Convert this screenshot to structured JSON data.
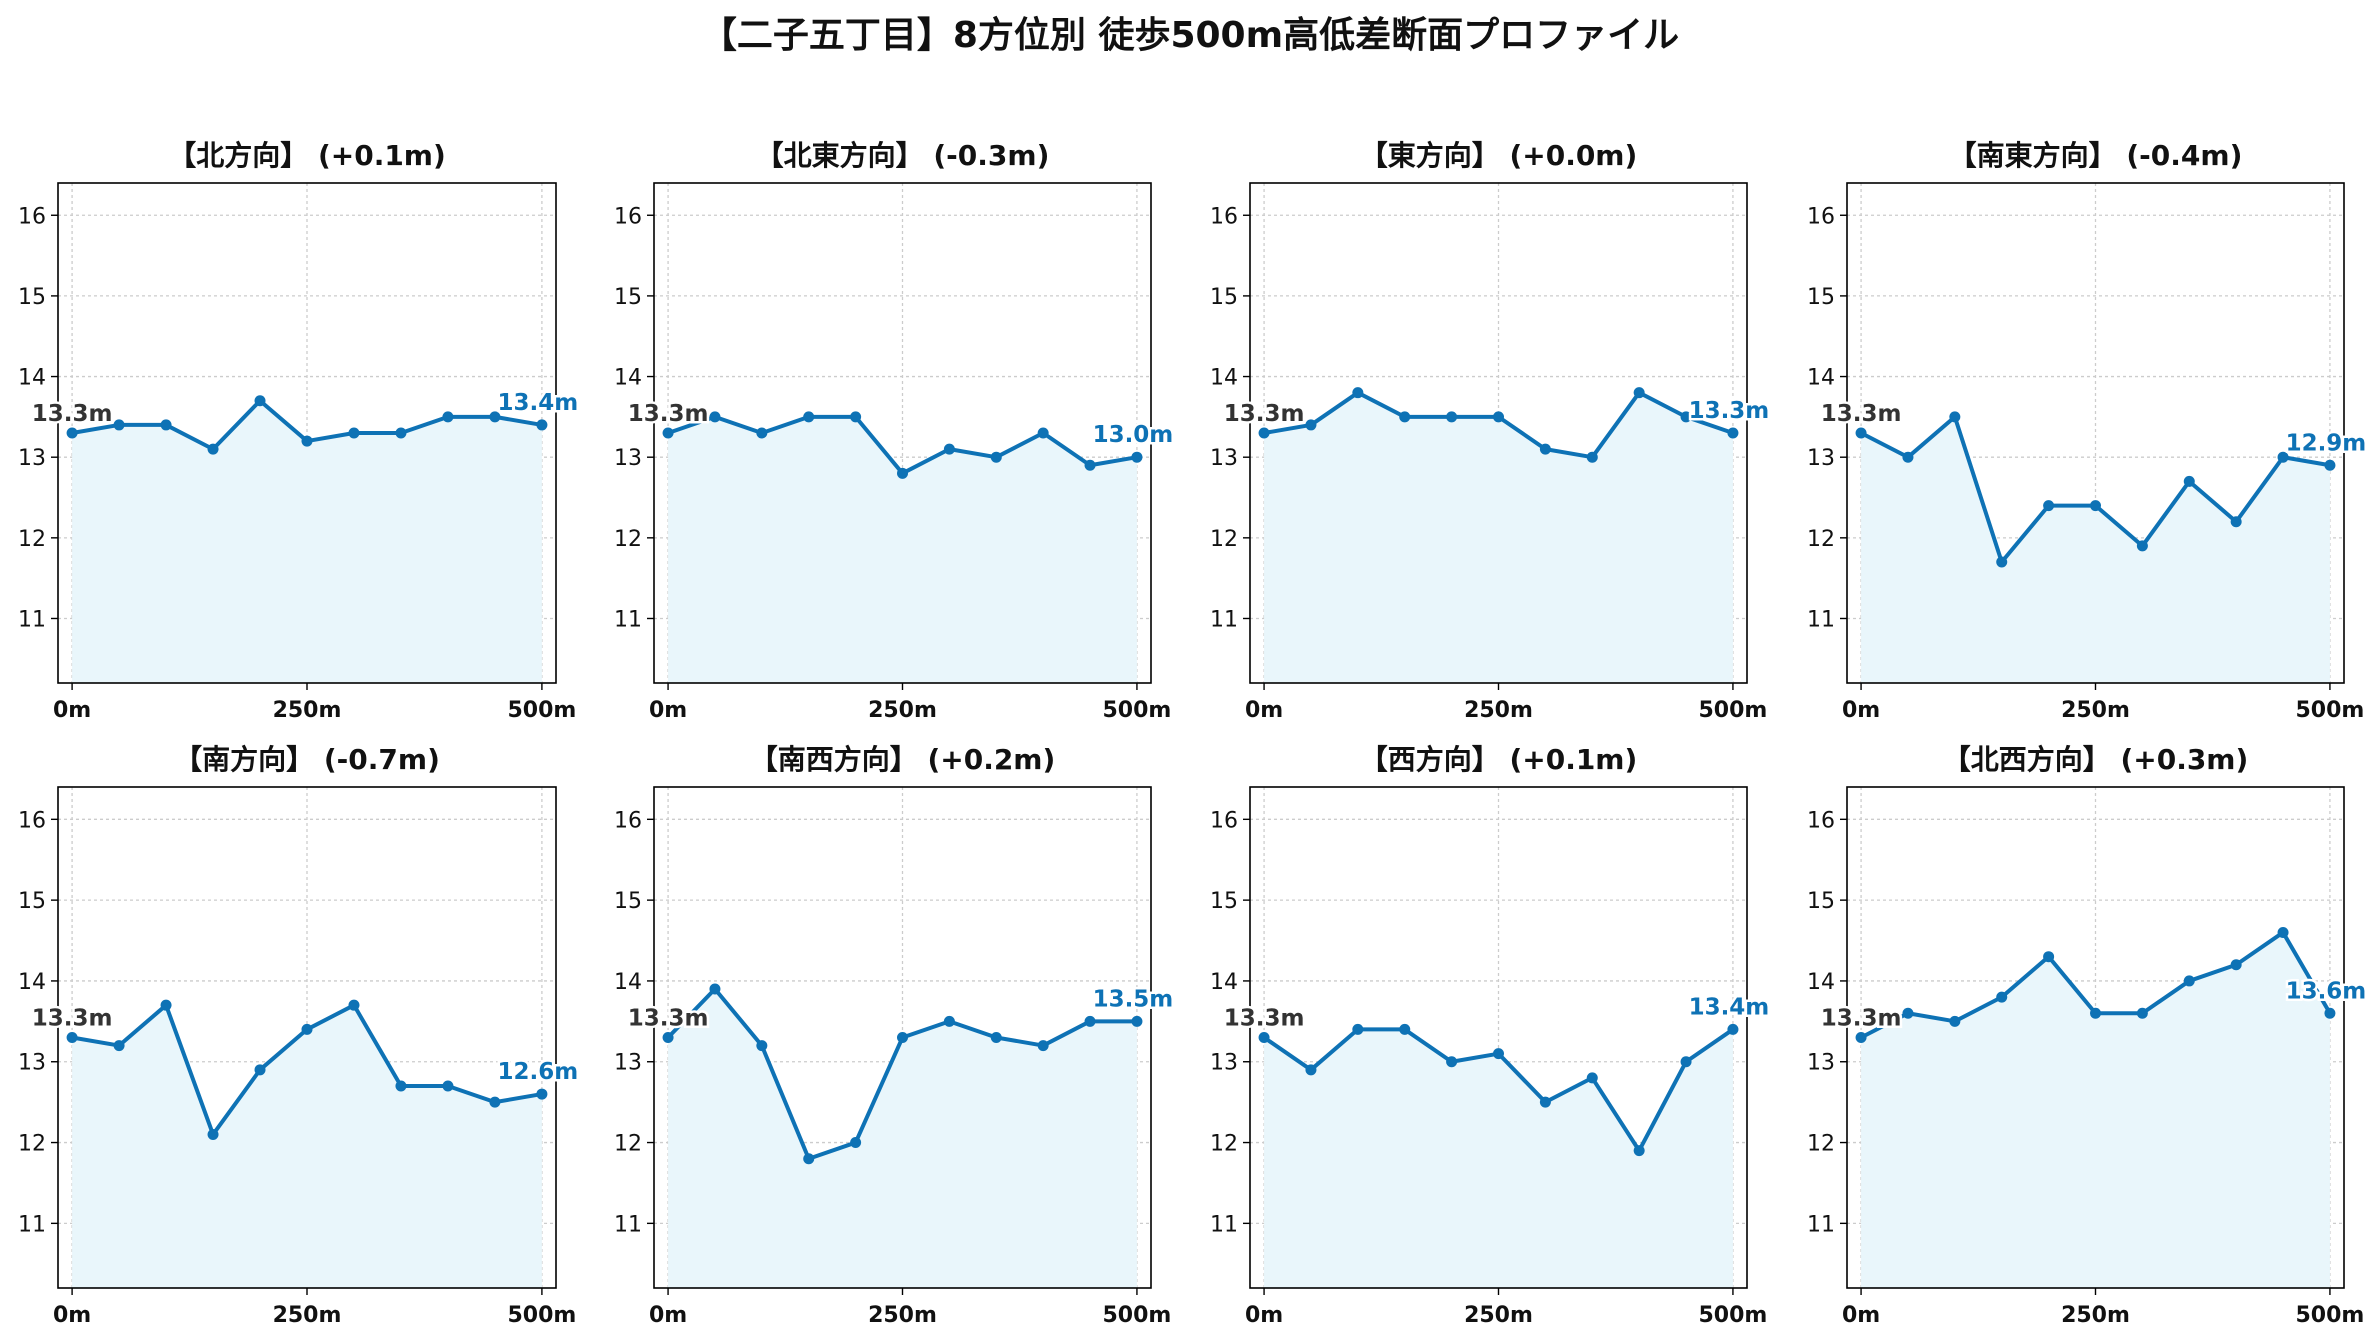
{
  "title": "【二子五丁目】8方位別 徒歩500m高低差断面プロファイル",
  "colors": {
    "line": "#0e72b5",
    "fill": "#e9f6fb",
    "grid": "#cccccc",
    "axis": "#000000",
    "start_label": "#333333"
  },
  "chart_data": [
    {
      "type": "area",
      "title": "【北方向】 (+0.1m)",
      "x": [
        0,
        50,
        100,
        150,
        200,
        250,
        300,
        350,
        400,
        450,
        500
      ],
      "values": [
        13.3,
        13.4,
        13.4,
        13.1,
        13.7,
        13.2,
        13.3,
        13.3,
        13.5,
        13.5,
        13.4
      ],
      "start_label": "13.3m",
      "end_label": "13.4m",
      "xticks": [
        "0m",
        "250m",
        "500m"
      ],
      "yticks": [
        11,
        12,
        13,
        14,
        15,
        16
      ],
      "ylim": [
        10.2,
        16.4
      ],
      "xlim": [
        -15,
        515
      ],
      "grid": true
    },
    {
      "type": "area",
      "title": "【北東方向】 (-0.3m)",
      "x": [
        0,
        50,
        100,
        150,
        200,
        250,
        300,
        350,
        400,
        450,
        500
      ],
      "values": [
        13.3,
        13.5,
        13.3,
        13.5,
        13.5,
        12.8,
        13.1,
        13.0,
        13.3,
        12.9,
        13.0
      ],
      "start_label": "13.3m",
      "end_label": "13.0m",
      "xticks": [
        "0m",
        "250m",
        "500m"
      ],
      "yticks": [
        11,
        12,
        13,
        14,
        15,
        16
      ],
      "ylim": [
        10.2,
        16.4
      ],
      "xlim": [
        -15,
        515
      ],
      "grid": true
    },
    {
      "type": "area",
      "title": "【東方向】 (+0.0m)",
      "x": [
        0,
        50,
        100,
        150,
        200,
        250,
        300,
        350,
        400,
        450,
        500
      ],
      "values": [
        13.3,
        13.4,
        13.8,
        13.5,
        13.5,
        13.5,
        13.1,
        13.0,
        13.8,
        13.5,
        13.3
      ],
      "start_label": "13.3m",
      "end_label": "13.3m",
      "xticks": [
        "0m",
        "250m",
        "500m"
      ],
      "yticks": [
        11,
        12,
        13,
        14,
        15,
        16
      ],
      "ylim": [
        10.2,
        16.4
      ],
      "xlim": [
        -15,
        515
      ],
      "grid": true
    },
    {
      "type": "area",
      "title": "【南東方向】 (-0.4m)",
      "x": [
        0,
        50,
        100,
        150,
        200,
        250,
        300,
        350,
        400,
        450,
        500
      ],
      "values": [
        13.3,
        13.0,
        13.5,
        11.7,
        12.4,
        12.4,
        11.9,
        12.7,
        12.2,
        13.0,
        12.9
      ],
      "start_label": "13.3m",
      "end_label": "12.9m",
      "xticks": [
        "0m",
        "250m",
        "500m"
      ],
      "yticks": [
        11,
        12,
        13,
        14,
        15,
        16
      ],
      "ylim": [
        10.2,
        16.4
      ],
      "xlim": [
        -15,
        515
      ],
      "grid": true
    },
    {
      "type": "area",
      "title": "【南方向】 (-0.7m)",
      "x": [
        0,
        50,
        100,
        150,
        200,
        250,
        300,
        350,
        400,
        450,
        500
      ],
      "values": [
        13.3,
        13.2,
        13.7,
        12.1,
        12.9,
        13.4,
        13.7,
        12.7,
        12.7,
        12.5,
        12.6
      ],
      "start_label": "13.3m",
      "end_label": "12.6m",
      "xticks": [
        "0m",
        "250m",
        "500m"
      ],
      "yticks": [
        11,
        12,
        13,
        14,
        15,
        16
      ],
      "ylim": [
        10.2,
        16.4
      ],
      "xlim": [
        -15,
        515
      ],
      "grid": true
    },
    {
      "type": "area",
      "title": "【南西方向】 (+0.2m)",
      "x": [
        0,
        50,
        100,
        150,
        200,
        250,
        300,
        350,
        400,
        450,
        500
      ],
      "values": [
        13.3,
        13.9,
        13.2,
        11.8,
        12.0,
        13.3,
        13.5,
        13.3,
        13.2,
        13.5,
        13.5
      ],
      "start_label": "13.3m",
      "end_label": "13.5m",
      "xticks": [
        "0m",
        "250m",
        "500m"
      ],
      "yticks": [
        11,
        12,
        13,
        14,
        15,
        16
      ],
      "ylim": [
        10.2,
        16.4
      ],
      "xlim": [
        -15,
        515
      ],
      "grid": true
    },
    {
      "type": "area",
      "title": "【西方向】 (+0.1m)",
      "x": [
        0,
        50,
        100,
        150,
        200,
        250,
        300,
        350,
        400,
        450,
        500
      ],
      "values": [
        13.3,
        12.9,
        13.4,
        13.4,
        13.0,
        13.1,
        12.5,
        12.8,
        11.9,
        13.0,
        13.4
      ],
      "start_label": "13.3m",
      "end_label": "13.4m",
      "xticks": [
        "0m",
        "250m",
        "500m"
      ],
      "yticks": [
        11,
        12,
        13,
        14,
        15,
        16
      ],
      "ylim": [
        10.2,
        16.4
      ],
      "xlim": [
        -15,
        515
      ],
      "grid": true
    },
    {
      "type": "area",
      "title": "【北西方向】 (+0.3m)",
      "x": [
        0,
        50,
        100,
        150,
        200,
        250,
        300,
        350,
        400,
        450,
        500
      ],
      "values": [
        13.3,
        13.6,
        13.5,
        13.8,
        14.3,
        13.6,
        13.6,
        14.0,
        14.2,
        14.6,
        13.6
      ],
      "start_label": "13.3m",
      "end_label": "13.6m",
      "xticks": [
        "0m",
        "250m",
        "500m"
      ],
      "yticks": [
        11,
        12,
        13,
        14,
        15,
        16
      ],
      "ylim": [
        10.2,
        16.4
      ],
      "xlim": [
        -15,
        515
      ],
      "grid": true
    }
  ]
}
